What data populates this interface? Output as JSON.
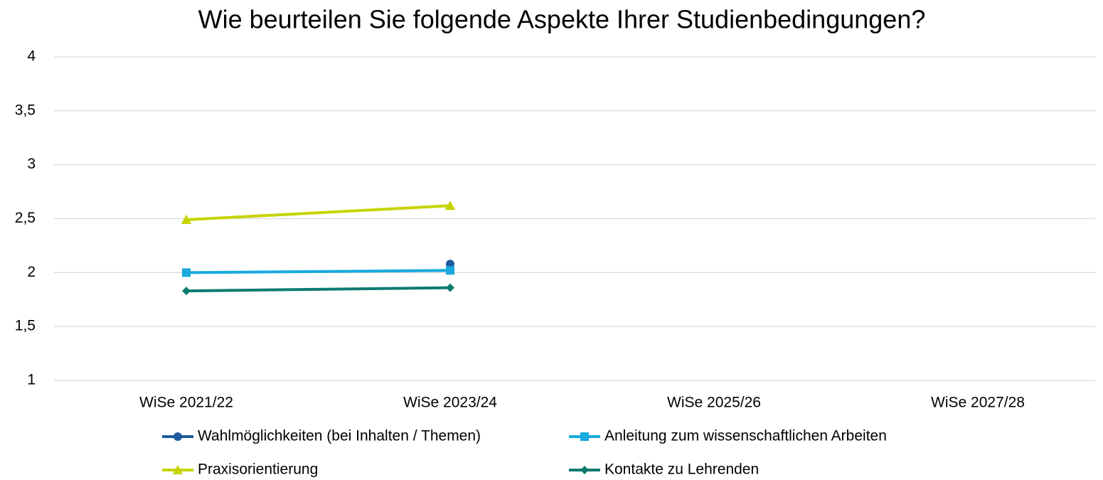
{
  "chart_data": {
    "type": "line",
    "title": "Wie beurteilen Sie folgende Aspekte Ihrer Studienbedingungen?",
    "categories": [
      "WiSe 2021/22",
      "WiSe 2023/24",
      "WiSe 2025/26",
      "WiSe 2027/28"
    ],
    "series": [
      {
        "name": "Wahlmöglichkeiten (bei Inhalten / Themen)",
        "color": "#1d5a9e",
        "marker": "circle",
        "values": [
          null,
          2.08,
          null,
          null
        ]
      },
      {
        "name": "Anleitung zum wissenschaftlichen Arbeiten",
        "color": "#19aade",
        "marker": "square",
        "values": [
          2.0,
          2.02,
          null,
          null
        ]
      },
      {
        "name": "Praxisorientierung",
        "color": "#c6d300",
        "marker": "triangle",
        "values": [
          2.49,
          2.62,
          null,
          null
        ]
      },
      {
        "name": "Kontakte zu Lehrenden",
        "color": "#0e7b70",
        "marker": "diamond",
        "values": [
          1.83,
          1.86,
          null,
          null
        ]
      }
    ],
    "ylim": [
      1,
      4
    ],
    "yticks": [
      1,
      {
        "value": 1.5,
        "label": "1,5"
      },
      2,
      {
        "value": 2.5,
        "label": "2,5"
      },
      3,
      {
        "value": 3.5,
        "label": "3,5"
      },
      4
    ],
    "grid": true
  }
}
